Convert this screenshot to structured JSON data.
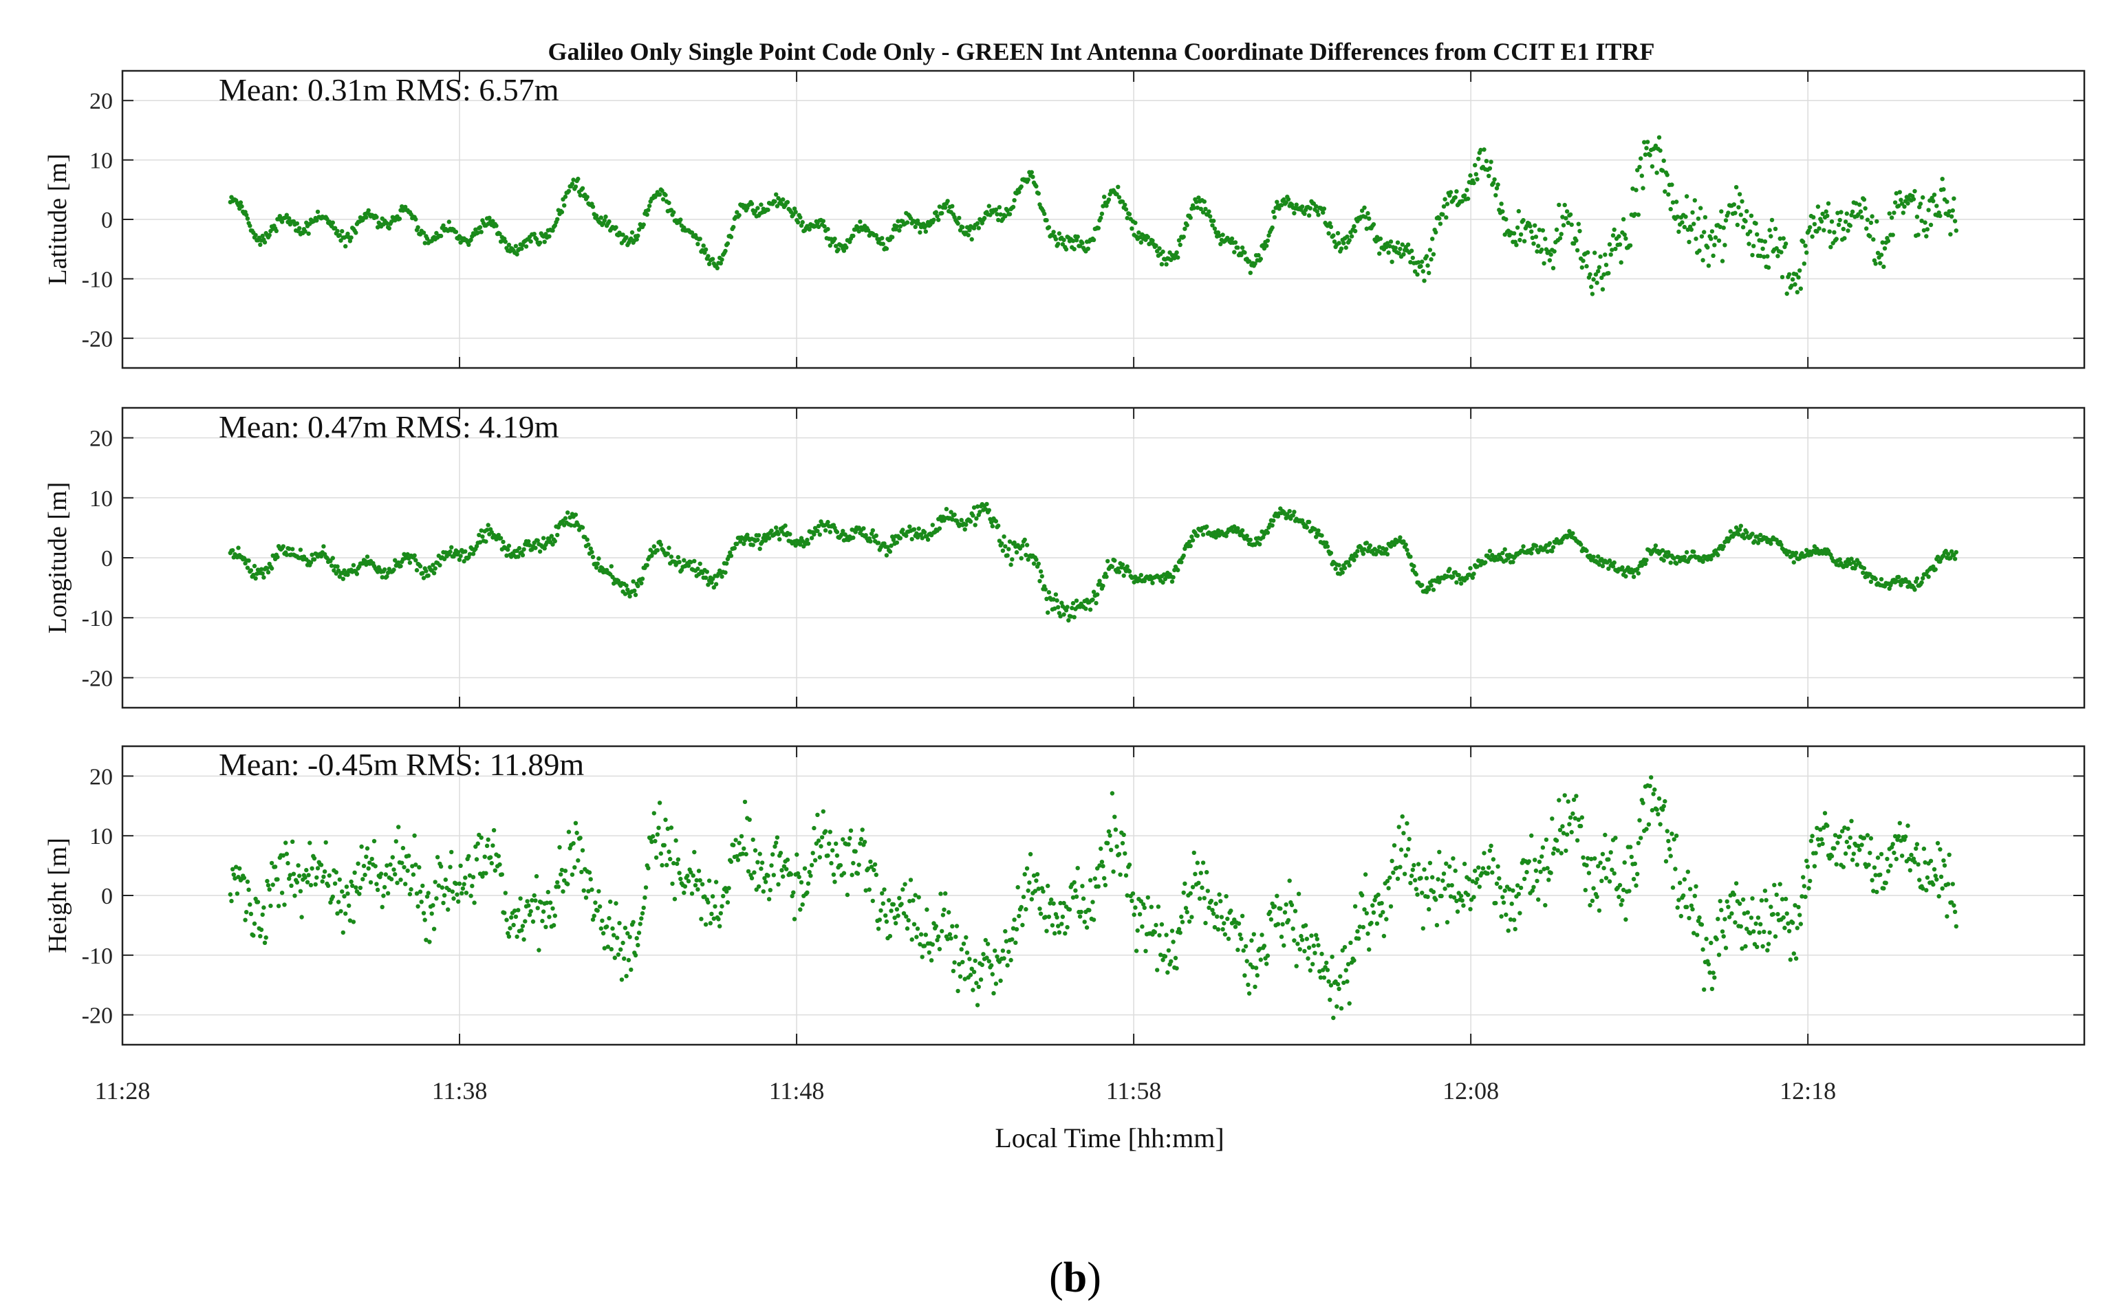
{
  "chart_data": {
    "type": "scatter",
    "title": "Galileo Only Single Point Code Only - GREEN Int Antenna Coordinate Differences from CCIT E1 ITRF",
    "xlabel": "Local Time [hh:mm]",
    "x_ticks": [
      "11:28",
      "11:38",
      "11:48",
      "11:58",
      "12:08",
      "12:18"
    ],
    "x_tick_minutes": [
      0,
      10,
      20,
      30,
      40,
      50
    ],
    "xlim_minutes": [
      0,
      58.2
    ],
    "x_data_range_minutes": [
      3.2,
      54.4
    ],
    "point_color": "#1a8a1a",
    "grid": true,
    "caption": {
      "open": "(",
      "letter": "b",
      "close": ")"
    },
    "panels": [
      {
        "ylabel": "Latitude [m]",
        "stats": "Mean: 0.31m  RMS: 6.57m",
        "mean": 0.31,
        "rms": 6.57,
        "ylim": [
          -25,
          25
        ],
        "y_ticks": [
          20,
          10,
          0,
          -10,
          -20
        ],
        "y_tick_labels": [
          "20",
          "10",
          "0",
          "-10",
          "-20"
        ],
        "trend": [
          [
            3,
            3
          ],
          [
            5,
            -2
          ],
          [
            8,
            0
          ],
          [
            11,
            -4
          ],
          [
            14,
            2
          ],
          [
            16,
            -1
          ],
          [
            18,
            -3
          ],
          [
            20,
            4
          ],
          [
            21,
            -5
          ],
          [
            23,
            -1
          ],
          [
            25,
            0
          ],
          [
            27,
            3
          ],
          [
            28,
            -2
          ],
          [
            30,
            -1
          ],
          [
            31,
            -2
          ],
          [
            33,
            -4
          ],
          [
            35,
            1
          ],
          [
            37,
            -2
          ],
          [
            38,
            -8
          ],
          [
            40,
            6
          ],
          [
            41,
            4
          ],
          [
            43,
            -9
          ],
          [
            45,
            4
          ],
          [
            47,
            2
          ],
          [
            48,
            -6
          ],
          [
            50,
            -3
          ],
          [
            52,
            0
          ],
          [
            54,
            1
          ]
        ],
        "wave": [
          [
            3.2,
            4
          ],
          [
            36,
            5
          ],
          [
            40,
            9
          ],
          [
            47,
            6
          ],
          [
            55,
            6
          ]
        ],
        "noise": [
          [
            3.2,
            0.6
          ],
          [
            36,
            0.8
          ],
          [
            40,
            1.5
          ],
          [
            44,
            2.5
          ],
          [
            55,
            2.5
          ]
        ],
        "points": 1500,
        "seed": 11
      },
      {
        "ylabel": "Longitude [m]",
        "stats": "Mean: 0.47m  RMS: 4.19m",
        "mean": 0.47,
        "rms": 4.19,
        "ylim": [
          -25,
          25
        ],
        "y_ticks": [
          20,
          10,
          0,
          -10,
          -20
        ],
        "y_tick_labels": [
          "20",
          "10",
          "0",
          "-10",
          "-20"
        ],
        "trend": [
          [
            3,
            0
          ],
          [
            5,
            0
          ],
          [
            8,
            -2
          ],
          [
            11,
            2
          ],
          [
            13,
            4
          ],
          [
            15,
            -3
          ],
          [
            18,
            0
          ],
          [
            20,
            5
          ],
          [
            22,
            3
          ],
          [
            24,
            4
          ],
          [
            25.5,
            9
          ],
          [
            26.5,
            0
          ],
          [
            28,
            -8
          ],
          [
            30,
            -3
          ],
          [
            31,
            -1
          ],
          [
            33,
            5
          ],
          [
            35,
            6
          ],
          [
            36,
            0
          ],
          [
            38,
            2
          ],
          [
            38.5,
            -4
          ],
          [
            40,
            -3
          ],
          [
            41,
            1
          ],
          [
            43,
            2
          ],
          [
            45,
            -2
          ],
          [
            47,
            2
          ],
          [
            49,
            3
          ],
          [
            51,
            -1
          ],
          [
            53,
            -5
          ],
          [
            54.4,
            1
          ]
        ],
        "wave": [
          [
            3.2,
            3
          ],
          [
            25,
            3
          ],
          [
            27,
            4
          ],
          [
            28,
            2.5
          ],
          [
            40,
            2.5
          ],
          [
            41,
            1.5
          ],
          [
            55,
            2
          ]
        ],
        "noise": [
          [
            3.2,
            0.7
          ],
          [
            25,
            0.8
          ],
          [
            27,
            1.5
          ],
          [
            30,
            0.6
          ],
          [
            55,
            0.6
          ]
        ],
        "points": 1500,
        "seed": 23
      },
      {
        "ylabel": "Height [m]",
        "stats": "Mean: -0.45m  RMS: 11.89m",
        "mean": -0.45,
        "rms": 11.89,
        "ylim": [
          -25,
          25
        ],
        "y_ticks": [
          20,
          10,
          0,
          -10,
          -20
        ],
        "y_tick_labels": [
          "20",
          "10",
          "0",
          "-10",
          "-20"
        ],
        "trend": [
          [
            3,
            2
          ],
          [
            6,
            2
          ],
          [
            9,
            3
          ],
          [
            12,
            0
          ],
          [
            15,
            -2
          ],
          [
            17,
            5
          ],
          [
            19,
            3
          ],
          [
            20,
            8
          ],
          [
            22,
            4
          ],
          [
            24,
            -8
          ],
          [
            26,
            -10
          ],
          [
            28,
            3
          ],
          [
            30,
            0
          ],
          [
            32,
            -5
          ],
          [
            34,
            -5
          ],
          [
            36,
            -12
          ],
          [
            38,
            5
          ],
          [
            40,
            0
          ],
          [
            42,
            5
          ],
          [
            44,
            8
          ],
          [
            46,
            6
          ],
          [
            48,
            -10
          ],
          [
            50,
            5
          ],
          [
            52,
            8
          ],
          [
            54.4,
            0
          ]
        ],
        "wave": [
          [
            3.2,
            7
          ],
          [
            55,
            7
          ]
        ],
        "noise": [
          [
            3.2,
            3.5
          ],
          [
            55,
            3.5
          ]
        ],
        "points": 1500,
        "seed": 37
      }
    ]
  }
}
